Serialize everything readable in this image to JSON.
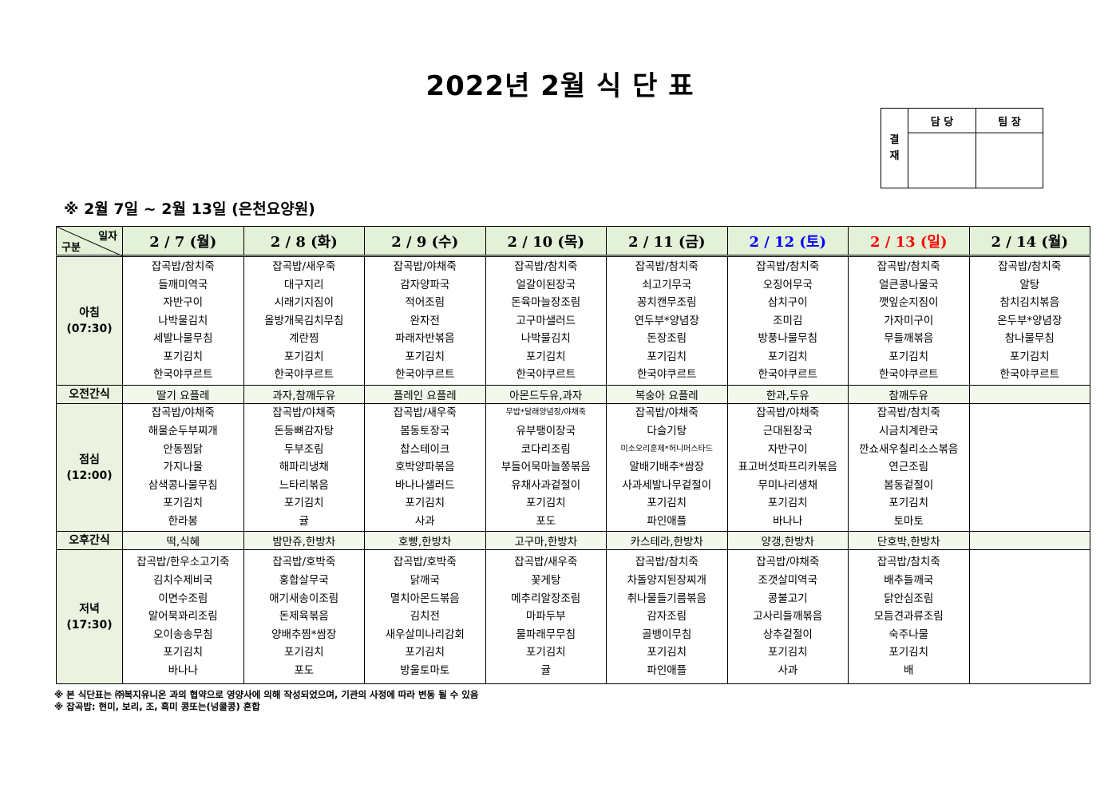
{
  "title": "2022년 2월 식 단 표",
  "approval": {
    "label": "결\n재",
    "label_chars": [
      "결",
      "재"
    ],
    "col1": "담 당",
    "col2": "팀 장"
  },
  "subtitle": "※ 2월 7일 ~ 2월 13일 (은천요양원)",
  "corner": {
    "top": "일자",
    "bottom": "구분"
  },
  "rows": {
    "breakfast": "아침",
    "breakfast_time": "(07:30)",
    "am_snack": "오전간식",
    "lunch": "점심",
    "lunch_time": "(12:00)",
    "pm_snack": "오후간식",
    "dinner": "저녁",
    "dinner_time": "(17:30)"
  },
  "colors": {
    "header_bg": "#e3f1d8",
    "label_bg": "#ebf3e0",
    "saturday": "#0000ff",
    "sunday": "#ff0000"
  },
  "days": [
    {
      "date": "2 / 7 (월)",
      "color": "#000000",
      "breakfast": [
        "잡곡밥/참치죽",
        "들깨미역국",
        "자반구이",
        "나박물김치",
        "세발나물무침",
        "포기김치",
        "한국야쿠르트"
      ],
      "am_snack": "딸기 요플레",
      "lunch": [
        "잡곡밥/야채죽",
        "해물순두부찌개",
        "안동찜닭",
        "가지나물",
        "삼색콩나물무침",
        "포기김치",
        "한라봉"
      ],
      "pm_snack": "떡,식혜",
      "dinner": [
        "잡곡밥/한우소고기죽",
        "김치수제비국",
        "이면수조림",
        "알어묵꽈리조림",
        "오이송송무침",
        "포기김치",
        "바나나"
      ]
    },
    {
      "date": "2 / 8 (화)",
      "color": "#000000",
      "breakfast": [
        "잡곡밥/새우죽",
        "대구지리",
        "시래기지짐이",
        "올방개묵김치무침",
        "계란찜",
        "포기김치",
        "한국야쿠르트"
      ],
      "am_snack": "과자,참깨두유",
      "lunch": [
        "잡곡밥/야채죽",
        "돈등뼈감자탕",
        "두부조림",
        "해파리냉채",
        "느타리볶음",
        "포기김치",
        "귤"
      ],
      "pm_snack": "밤만쥬,한방차",
      "dinner": [
        "잡곡밥/호박죽",
        "홍합살무국",
        "애기새송이조림",
        "돈제육볶음",
        "양배추찜*쌈장",
        "포기김치",
        "포도"
      ]
    },
    {
      "date": "2 / 9 (수)",
      "color": "#000000",
      "breakfast": [
        "잡곡밥/야채죽",
        "감자양파국",
        "적어조림",
        "완자전",
        "파래자반볶음",
        "포기김치",
        "한국야쿠르트"
      ],
      "am_snack": "플레인 요플레",
      "lunch": [
        "잡곡밥/새우죽",
        "봄동토장국",
        "찹스테이크",
        "호박양파볶음",
        "바나나샐러드",
        "포기김치",
        "사과"
      ],
      "pm_snack": "호빵,한방차",
      "dinner": [
        "잡곡밥/호박죽",
        "닭깨국",
        "멸치아몬드볶음",
        "김치전",
        "새우살미나리감회",
        "포기김치",
        "방울토마토"
      ]
    },
    {
      "date": "2 / 10 (목)",
      "color": "#000000",
      "breakfast": [
        "잡곡밥/참치죽",
        "얼갈이된장국",
        "돈육마늘장조림",
        "고구마샐러드",
        "나박물김치",
        "포기김치",
        "한국야쿠르트"
      ],
      "am_snack": "아몬드두유,과자",
      "lunch": [
        "무밥*달래양념장/야채죽",
        "유부팽이장국",
        "코다리조림",
        "부들어묵마늘쫑볶음",
        "유채사과겉절이",
        "포기김치",
        "포도"
      ],
      "pm_snack": "고구마,한방차",
      "dinner": [
        "잡곡밥/새우죽",
        "꽃게탕",
        "메추리알장조림",
        "마파두부",
        "물파래무무침",
        "포기김치",
        "귤"
      ]
    },
    {
      "date": "2 / 11 (금)",
      "color": "#000000",
      "breakfast": [
        "잡곡밥/참치죽",
        "쇠고기무국",
        "꽁치캔무조림",
        "연두부*양념장",
        "돈장조림",
        "포기김치",
        "한국야쿠르트"
      ],
      "am_snack": "복숭아 요플레",
      "lunch": [
        "잡곡밥/야채죽",
        "다슬기탕",
        "미소오리훈제*허니머스타드",
        "알배기배추*쌈장",
        "사과세발나무겉절이",
        "포기김치",
        "파인애플"
      ],
      "pm_snack": "카스테라,한방차",
      "dinner": [
        "잡곡밥/참치죽",
        "차돌양지된장찌개",
        "취나물들기름볶음",
        "감자조림",
        "골뱅이무침",
        "포기김치",
        "파인애플"
      ]
    },
    {
      "date": "2 / 12 (토)",
      "color": "#0000ff",
      "breakfast": [
        "잡곡밥/참치죽",
        "오징어무국",
        "삼치구이",
        "조미김",
        "방풍나물무침",
        "포기김치",
        "한국야쿠르트"
      ],
      "am_snack": "한과,두유",
      "lunch": [
        "잡곡밥/야채죽",
        "근대된장국",
        "자반구이",
        "표고버섯파프리카볶음",
        "무미나리생채",
        "포기김치",
        "바나나"
      ],
      "pm_snack": "양갱,한방차",
      "dinner": [
        "잡곡밥/야채죽",
        "조갯살미역국",
        "콩불고기",
        "고사리들깨볶음",
        "상추겉절이",
        "포기김치",
        "사과"
      ]
    },
    {
      "date": "2 / 13 (일)",
      "color": "#ff0000",
      "breakfast": [
        "잡곡밥/참치죽",
        "얼큰콩나물국",
        "깻잎순지짐이",
        "가자미구이",
        "무들깨볶음",
        "포기김치",
        "한국야쿠르트"
      ],
      "am_snack": "참깨두유",
      "lunch": [
        "잡곡밥/참치죽",
        "시금치계란국",
        "깐쇼새우칠리소스볶음",
        "연근조림",
        "봄동겉절이",
        "포기김치",
        "토마토"
      ],
      "pm_snack": "단호박,한방차",
      "dinner": [
        "잡곡밥/참치죽",
        "배추들깨국",
        "닭안심조림",
        "모듬견과류조림",
        "숙주나물",
        "포기김치",
        "배"
      ]
    },
    {
      "date": "2 / 14 (월)",
      "color": "#000000",
      "breakfast": [
        "잡곡밥/참치죽",
        "알탕",
        "참치김치볶음",
        "온두부*양념장",
        "참나물무침",
        "포기김치",
        "한국야쿠르트"
      ],
      "am_snack": "",
      "lunch": [],
      "pm_snack": "",
      "dinner": []
    }
  ],
  "notes": [
    "※ 본 식단표는 ㈜복지유니온 과의 협약으로 영양사에 의해 작성되었으며, 기관의 사정에 따라 변동 될 수 있음",
    "※ 잡곡밥: 현미, 보리, 조, 흑미 콩또는(넝쿨콩) 혼합"
  ]
}
